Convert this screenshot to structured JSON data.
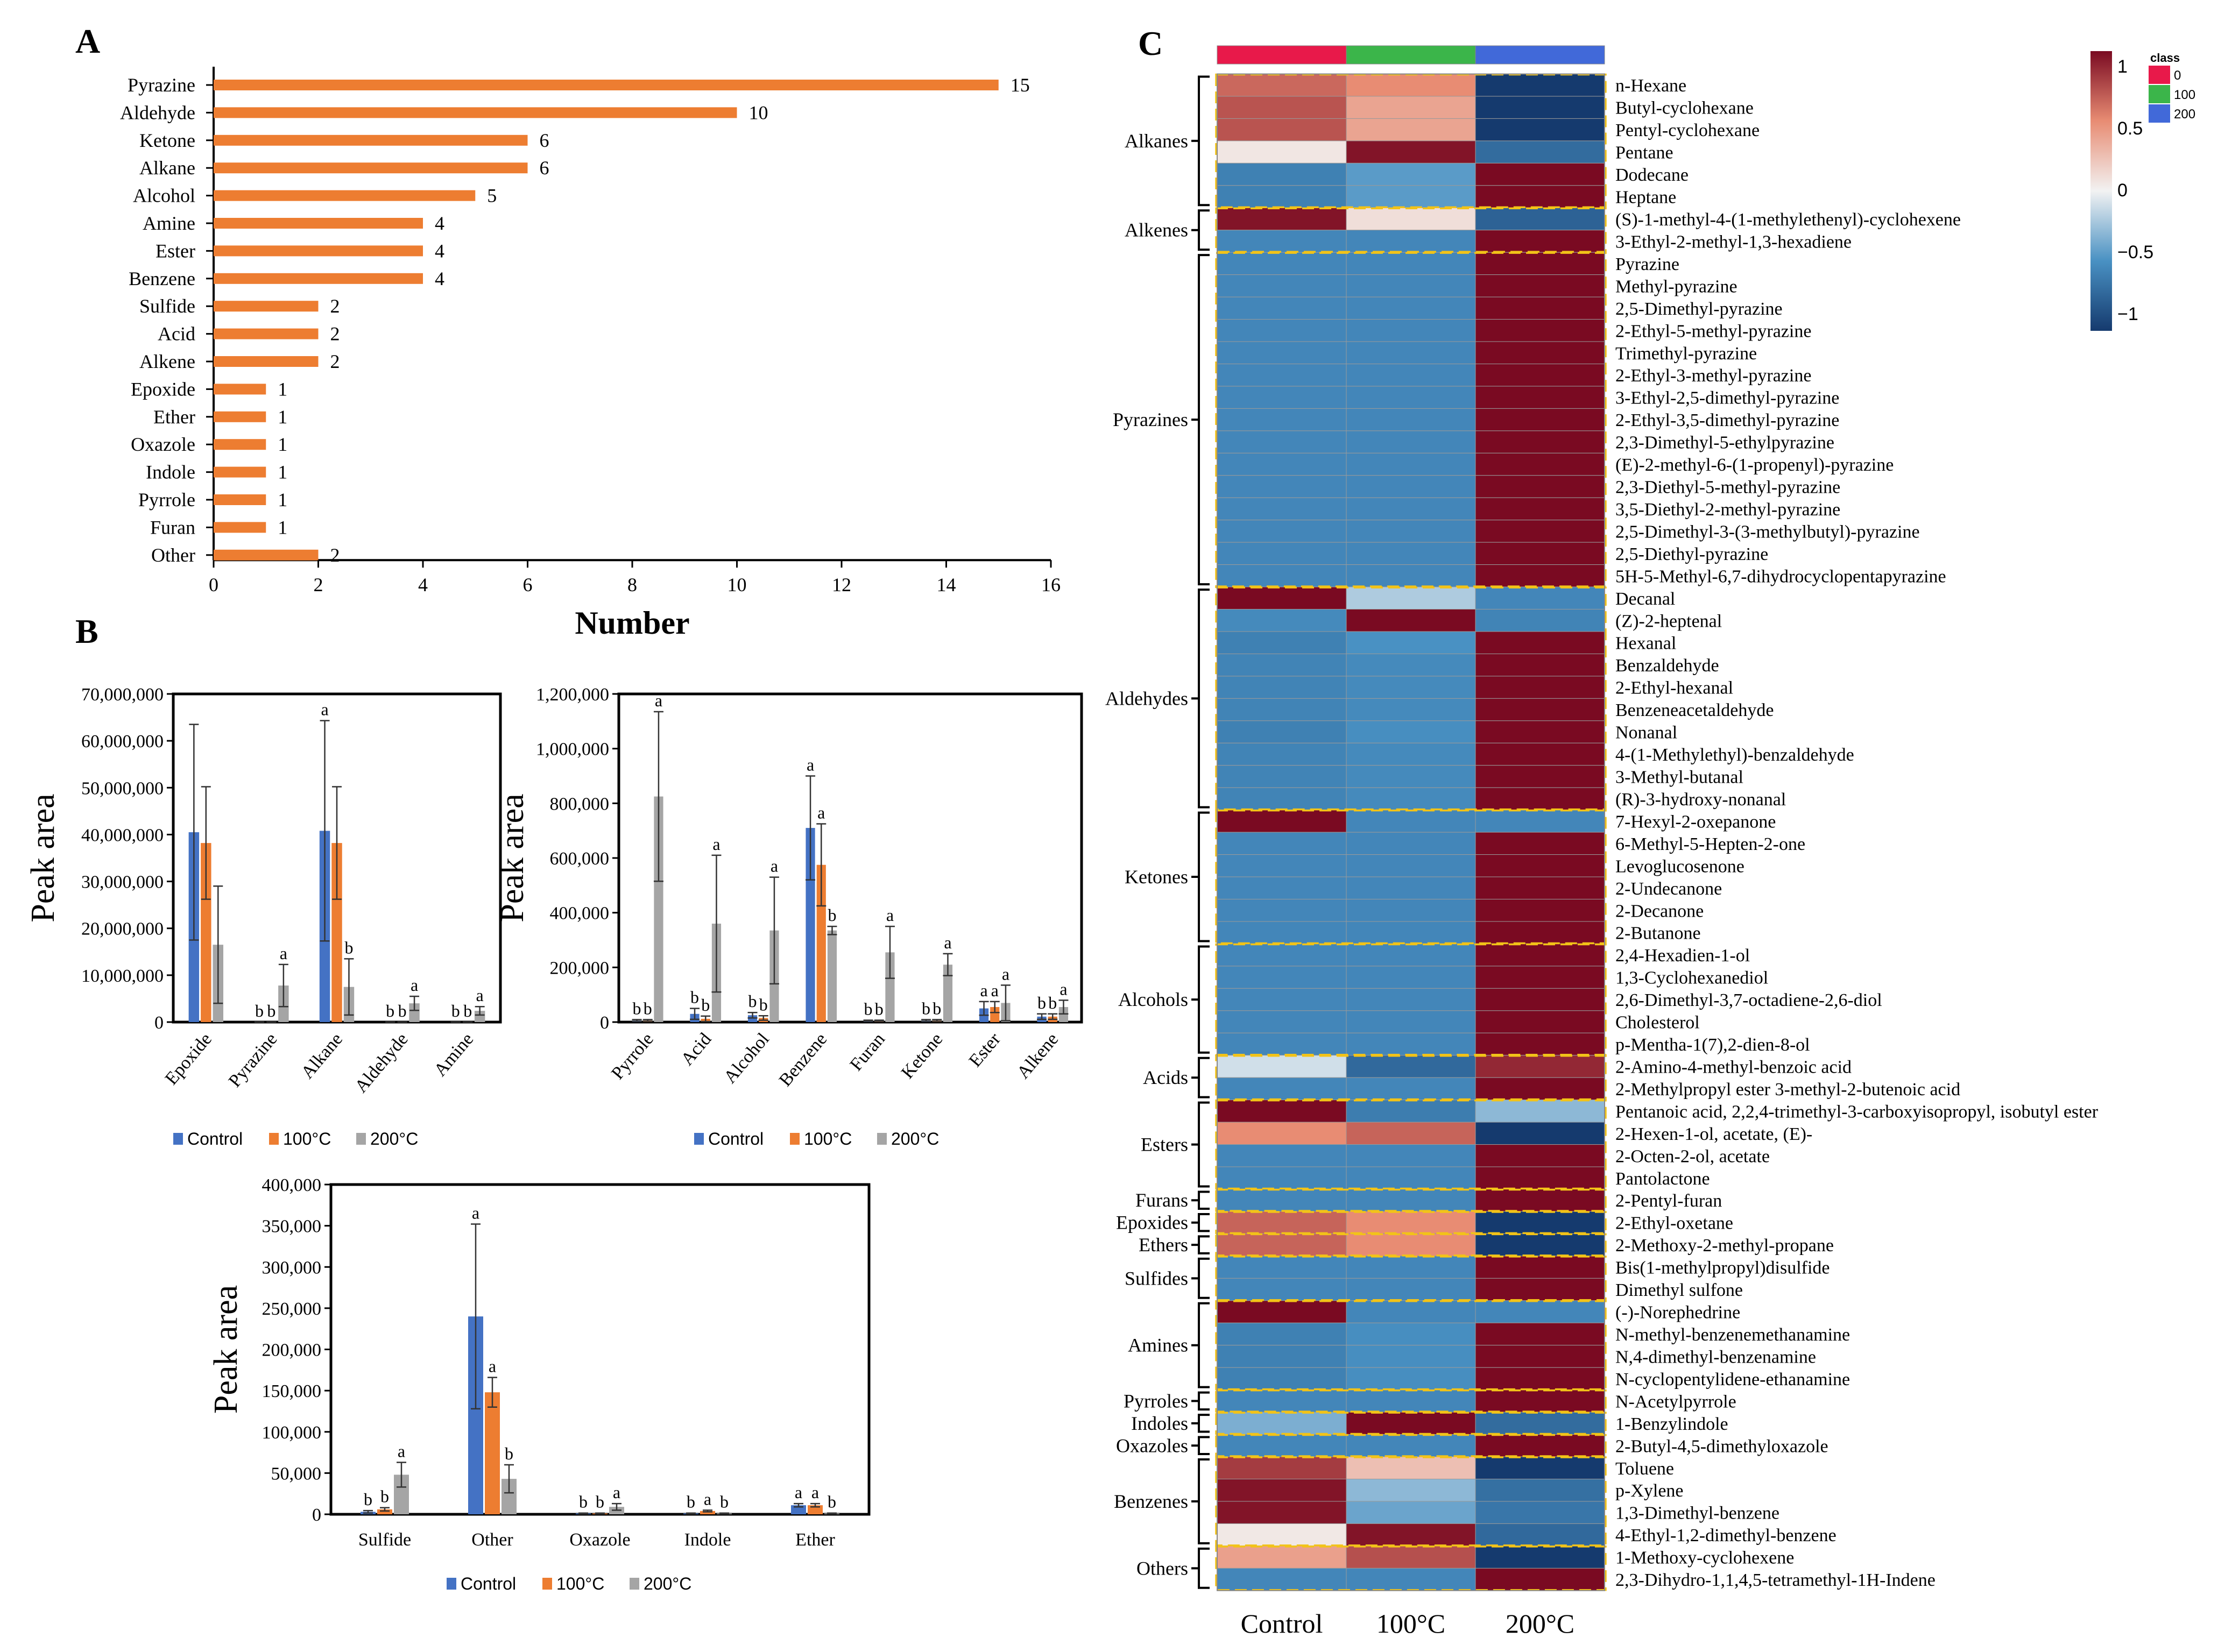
{
  "colors": {
    "orange": "#ED7D31",
    "control": "#4472C4",
    "c100": "#ED7D31",
    "c200": "#A5A5A5",
    "strip_control": "#E8194A",
    "strip_100": "#3BB54A",
    "strip_200": "#4169D9",
    "box": "#F2C318",
    "hm_high": "#7A0A22",
    "hm_mid": "#F2F2F2",
    "hm_low": "#153A6E"
  },
  "panel_labels": {
    "a": "A",
    "b": "B",
    "c": "C"
  },
  "chart_data": [
    {
      "id": "A",
      "type": "bar",
      "orientation": "horizontal",
      "categories": [
        "Pyrazine",
        "Aldehyde",
        "Ketone",
        "Alkane",
        "Alcohol",
        "Amine",
        "Ester",
        "Benzene",
        "Sulfide",
        "Acid",
        "Alkene",
        "Epoxide",
        "Ether",
        "Oxazole",
        "Indole",
        "Pyrrole",
        "Furan",
        "Other"
      ],
      "values": [
        15,
        10,
        6,
        6,
        5,
        4,
        4,
        4,
        2,
        2,
        2,
        1,
        1,
        1,
        1,
        1,
        1,
        2
      ],
      "xlabel": "Number",
      "xlim": [
        0,
        16
      ],
      "xticks": [
        0,
        2,
        4,
        6,
        8,
        10,
        12,
        14,
        16
      ]
    },
    {
      "id": "B1",
      "type": "bar",
      "ylabel": "Peak area",
      "ylim": [
        0,
        70000000
      ],
      "yticks": [
        0,
        10000000,
        20000000,
        30000000,
        40000000,
        50000000,
        60000000,
        70000000
      ],
      "ytick_labels": [
        "0",
        "10,000,000",
        "20,000,000",
        "30,000,000",
        "40,000,000",
        "50,000,000",
        "60,000,000",
        "70,000,000"
      ],
      "categories": [
        "Epoxide",
        "Pyrazine",
        "Alkane",
        "Aldehyde",
        "Amine"
      ],
      "series": [
        {
          "name": "Control",
          "values": [
            40500000,
            0,
            40800000,
            0,
            0
          ],
          "errors": [
            23000000,
            0,
            23500000,
            0,
            0
          ],
          "letters": [
            "",
            "b",
            "a",
            "b",
            "b"
          ]
        },
        {
          "name": "100°C",
          "values": [
            38200000,
            0,
            38200000,
            0,
            0
          ],
          "errors": [
            12000000,
            0,
            12000000,
            0,
            0
          ],
          "letters": [
            "",
            "b",
            "",
            "b",
            "b"
          ]
        },
        {
          "name": "200°C",
          "values": [
            16500000,
            7800000,
            7500000,
            4000000,
            2400000
          ],
          "errors": [
            12500000,
            4500000,
            6000000,
            1500000,
            900000
          ],
          "letters": [
            "",
            "a",
            "b",
            "a",
            "a"
          ]
        }
      ],
      "legend": [
        "Control",
        "100°C",
        "200°C"
      ]
    },
    {
      "id": "B2",
      "type": "bar",
      "ylabel": "Peak area",
      "ylim": [
        0,
        1200000
      ],
      "yticks": [
        0,
        200000,
        400000,
        600000,
        800000,
        1000000,
        1200000
      ],
      "ytick_labels": [
        "0",
        "200,000",
        "400,000",
        "600,000",
        "800,000",
        "1,000,000",
        "1,200,000"
      ],
      "categories": [
        "Pyrrole",
        "Acid",
        "Alcohol",
        "Benzene",
        "Furan",
        "Ketone",
        "Ester",
        "Alkene"
      ],
      "series": [
        {
          "name": "Control",
          "values": [
            6000,
            30000,
            25000,
            710000,
            5000,
            6000,
            50000,
            20000
          ],
          "errors": [
            3000,
            20000,
            10000,
            190000,
            2000,
            3000,
            25000,
            10000
          ],
          "letters": [
            "b",
            "b",
            "b",
            "a",
            "b",
            "b",
            "a",
            "b"
          ]
        },
        {
          "name": "100°C",
          "values": [
            6000,
            12000,
            15000,
            575000,
            5000,
            6000,
            55000,
            20000
          ],
          "errors": [
            3000,
            10000,
            8000,
            150000,
            2000,
            3000,
            20000,
            10000
          ],
          "letters": [
            "b",
            "b",
            "b",
            "a",
            "b",
            "b",
            "a",
            "b"
          ]
        },
        {
          "name": "200°C",
          "values": [
            825000,
            360000,
            335000,
            335000,
            255000,
            210000,
            70000,
            55000
          ],
          "errors": [
            310000,
            250000,
            195000,
            15000,
            95000,
            40000,
            65000,
            25000
          ],
          "letters": [
            "a",
            "a",
            "a",
            "b",
            "a",
            "a",
            "a",
            "a"
          ]
        }
      ],
      "legend": [
        "Control",
        "100°C",
        "200°C"
      ]
    },
    {
      "id": "B3",
      "type": "bar",
      "ylabel": "Peak area",
      "ylim": [
        0,
        400000
      ],
      "yticks": [
        0,
        50000,
        100000,
        150000,
        200000,
        250000,
        300000,
        350000,
        400000
      ],
      "ytick_labels": [
        "0",
        "50,000",
        "100,000",
        "150,000",
        "200,000",
        "250,000",
        "300,000",
        "350,000",
        "400,000"
      ],
      "categories": [
        "Sulfide",
        "Other",
        "Oxazole",
        "Indole",
        "Ether"
      ],
      "series": [
        {
          "name": "Control",
          "values": [
            3000,
            240000,
            1000,
            1000,
            11000
          ],
          "errors": [
            1500,
            112000,
            500,
            500,
            2000
          ],
          "letters": [
            "b",
            "a",
            "b",
            "b",
            "a"
          ]
        },
        {
          "name": "100°C",
          "values": [
            6000,
            148000,
            1000,
            4000,
            11000
          ],
          "errors": [
            2000,
            18000,
            500,
            1000,
            2000
          ],
          "letters": [
            "b",
            "a",
            "b",
            "a",
            "a"
          ]
        },
        {
          "name": "200°C",
          "values": [
            48000,
            43000,
            9000,
            1000,
            1000
          ],
          "errors": [
            15000,
            17000,
            4000,
            500,
            500
          ],
          "letters": [
            "a",
            "b",
            "a",
            "b",
            "b"
          ]
        }
      ],
      "legend": [
        "Control",
        "100°C",
        "200°C"
      ]
    },
    {
      "id": "C",
      "type": "heatmap",
      "columns": [
        "Control",
        "100°C",
        "200°C"
      ],
      "legend_title": "class",
      "class_legend": [
        "0",
        "100",
        "200"
      ],
      "color_scale": {
        "min": -1,
        "max": 1,
        "ticks": [
          1,
          0.5,
          0,
          -0.5,
          -1
        ],
        "tick_labels": [
          "1",
          "0.5",
          "0",
          "−0.5",
          "−1"
        ]
      },
      "groups": [
        {
          "name": "Alkanes",
          "count": 6
        },
        {
          "name": "Alkenes",
          "count": 2
        },
        {
          "name": "Pyrazines",
          "count": 15
        },
        {
          "name": "Aldehydes",
          "count": 10
        },
        {
          "name": "Ketones",
          "count": 6
        },
        {
          "name": "Alcohols",
          "count": 5
        },
        {
          "name": "Acids",
          "count": 2
        },
        {
          "name": "Esters",
          "count": 4
        },
        {
          "name": "Furans",
          "count": 1
        },
        {
          "name": "Epoxides",
          "count": 1
        },
        {
          "name": "Ethers",
          "count": 1
        },
        {
          "name": "Sulfides",
          "count": 2
        },
        {
          "name": "Amines",
          "count": 4
        },
        {
          "name": "Pyrroles",
          "count": 1
        },
        {
          "name": "Indoles",
          "count": 1
        },
        {
          "name": "Oxazoles",
          "count": 1
        },
        {
          "name": "Benzenes",
          "count": 4
        },
        {
          "name": "Others",
          "count": 2
        }
      ],
      "rows": [
        {
          "name": "n-Hexane",
          "values": [
            0.68,
            0.5,
            -1.15
          ]
        },
        {
          "name": "Butyl-cyclohexane",
          "values": [
            0.78,
            0.38,
            -1.15
          ]
        },
        {
          "name": "Pentyl-cyclohexane",
          "values": [
            0.78,
            0.38,
            -1.15
          ]
        },
        {
          "name": "Pentane",
          "values": [
            0.06,
            1.1,
            -0.78
          ]
        },
        {
          "name": "Dodecane",
          "values": [
            -0.62,
            -0.45,
            1.15
          ]
        },
        {
          "name": "Heptane",
          "values": [
            -0.62,
            -0.45,
            1.15
          ]
        },
        {
          "name": "(S)-1-methyl-4-(1-methylethenyl)-cyclohexene",
          "values": [
            1.1,
            0.1,
            -0.85
          ]
        },
        {
          "name": "3-Ethyl-2-methyl-1,3-hexadiene",
          "values": [
            -0.58,
            -0.58,
            1.15
          ]
        },
        {
          "name": "Pyrazine",
          "values": [
            -0.58,
            -0.58,
            1.15
          ]
        },
        {
          "name": "Methyl-pyrazine",
          "values": [
            -0.58,
            -0.58,
            1.15
          ]
        },
        {
          "name": "2,5-Dimethyl-pyrazine",
          "values": [
            -0.58,
            -0.58,
            1.15
          ]
        },
        {
          "name": "2-Ethyl-5-methyl-pyrazine",
          "values": [
            -0.58,
            -0.58,
            1.15
          ]
        },
        {
          "name": "Trimethyl-pyrazine",
          "values": [
            -0.58,
            -0.58,
            1.15
          ]
        },
        {
          "name": "2-Ethyl-3-methyl-pyrazine",
          "values": [
            -0.58,
            -0.58,
            1.15
          ]
        },
        {
          "name": "3-Ethyl-2,5-dimethyl-pyrazine",
          "values": [
            -0.58,
            -0.58,
            1.15
          ]
        },
        {
          "name": "2-Ethyl-3,5-dimethyl-pyrazine",
          "values": [
            -0.58,
            -0.58,
            1.15
          ]
        },
        {
          "name": "2,3-Dimethyl-5-ethylpyrazine",
          "values": [
            -0.58,
            -0.58,
            1.15
          ]
        },
        {
          "name": "(E)-2-methyl-6-(1-propenyl)-pyrazine",
          "values": [
            -0.58,
            -0.58,
            1.15
          ]
        },
        {
          "name": "2,3-Diethyl-5-methyl-pyrazine",
          "values": [
            -0.58,
            -0.58,
            1.15
          ]
        },
        {
          "name": "3,5-Diethyl-2-methyl-pyrazine",
          "values": [
            -0.58,
            -0.58,
            1.15
          ]
        },
        {
          "name": "2,5-Dimethyl-3-(3-methylbutyl)-pyrazine",
          "values": [
            -0.58,
            -0.58,
            1.15
          ]
        },
        {
          "name": "2,5-Diethyl-pyrazine",
          "values": [
            -0.58,
            -0.58,
            1.15
          ]
        },
        {
          "name": "5H-5-Methyl-6,7-dihydrocyclopentapyrazine",
          "values": [
            -0.58,
            -0.58,
            1.15
          ]
        },
        {
          "name": "Decanal",
          "values": [
            1.15,
            -0.2,
            -0.58
          ]
        },
        {
          "name": "(Z)-2-heptenal",
          "values": [
            -0.55,
            1.15,
            -0.6
          ]
        },
        {
          "name": "Hexanal",
          "values": [
            -0.62,
            -0.5,
            1.15
          ]
        },
        {
          "name": "Benzaldehyde",
          "values": [
            -0.6,
            -0.55,
            1.15
          ]
        },
        {
          "name": "2-Ethyl-hexanal",
          "values": [
            -0.6,
            -0.55,
            1.15
          ]
        },
        {
          "name": "Benzeneacetaldehyde",
          "values": [
            -0.6,
            -0.55,
            1.15
          ]
        },
        {
          "name": "Nonanal",
          "values": [
            -0.62,
            -0.52,
            1.15
          ]
        },
        {
          "name": "4-(1-Methylethyl)-benzaldehyde",
          "values": [
            -0.6,
            -0.55,
            1.15
          ]
        },
        {
          "name": "3-Methyl-butanal",
          "values": [
            -0.6,
            -0.55,
            1.15
          ]
        },
        {
          "name": "(R)-3-hydroxy-nonanal",
          "values": [
            -0.6,
            -0.55,
            1.15
          ]
        },
        {
          "name": "7-Hexyl-2-oxepanone",
          "values": [
            1.15,
            -0.58,
            -0.58
          ]
        },
        {
          "name": "6-Methyl-5-Hepten-2-one",
          "values": [
            -0.58,
            -0.58,
            1.15
          ]
        },
        {
          "name": "Levoglucosenone",
          "values": [
            -0.58,
            -0.58,
            1.15
          ]
        },
        {
          "name": "2-Undecanone",
          "values": [
            -0.58,
            -0.58,
            1.15
          ]
        },
        {
          "name": "2-Decanone",
          "values": [
            -0.58,
            -0.58,
            1.15
          ]
        },
        {
          "name": "2-Butanone",
          "values": [
            -0.58,
            -0.58,
            1.15
          ]
        },
        {
          "name": "2,4-Hexadien-1-ol",
          "values": [
            -0.58,
            -0.58,
            1.15
          ]
        },
        {
          "name": "1,3-Cyclohexanediol",
          "values": [
            -0.58,
            -0.58,
            1.15
          ]
        },
        {
          "name": "2,6-Dimethyl-3,7-octadiene-2,6-diol",
          "values": [
            -0.58,
            -0.58,
            1.15
          ]
        },
        {
          "name": "Cholesterol",
          "values": [
            -0.58,
            -0.58,
            1.15
          ]
        },
        {
          "name": "p-Mentha-1(7),2-dien-8-ol",
          "values": [
            -0.58,
            -0.58,
            1.15
          ]
        },
        {
          "name": "2-Amino-4-methyl-benzoic acid",
          "values": [
            -0.1,
            -0.8,
            1.0
          ]
        },
        {
          "name": "2-Methylpropyl ester 3-methyl-2-butenoic acid",
          "values": [
            -0.58,
            -0.58,
            1.15
          ]
        },
        {
          "name": "Pentanoic acid, 2,2,4-trimethyl-3-carboxyisopropyl, isobutyl ester",
          "values": [
            1.15,
            -0.65,
            -0.3
          ]
        },
        {
          "name": "2-Hexen-1-ol, acetate, (E)-",
          "values": [
            0.5,
            0.7,
            -1.15
          ]
        },
        {
          "name": "2-Octen-2-ol, acetate",
          "values": [
            -0.58,
            -0.58,
            1.15
          ]
        },
        {
          "name": "Pantolactone",
          "values": [
            -0.58,
            -0.58,
            1.15
          ]
        },
        {
          "name": "2-Pentyl-furan",
          "values": [
            -0.58,
            -0.58,
            1.15
          ]
        },
        {
          "name": "2-Ethyl-oxetane",
          "values": [
            0.7,
            0.5,
            -1.15
          ]
        },
        {
          "name": "2-Methoxy-2-methyl-propane",
          "values": [
            0.7,
            0.5,
            -1.15
          ]
        },
        {
          "name": "Bis(1-methylpropyl)disulfide",
          "values": [
            -0.58,
            -0.58,
            1.15
          ]
        },
        {
          "name": "Dimethyl sulfone",
          "values": [
            -0.58,
            -0.58,
            1.15
          ]
        },
        {
          "name": "(-)-Norephedrine",
          "values": [
            1.15,
            -0.58,
            -0.58
          ]
        },
        {
          "name": "N-methyl-benzenemethanamine",
          "values": [
            -0.62,
            -0.52,
            1.15
          ]
        },
        {
          "name": "N,4-dimethyl-benzenamine",
          "values": [
            -0.62,
            -0.52,
            1.15
          ]
        },
        {
          "name": "N-cyclopentylidene-ethanamine",
          "values": [
            -0.62,
            -0.52,
            1.15
          ]
        },
        {
          "name": "N-Acetylpyrrole",
          "values": [
            -0.58,
            -0.58,
            1.15
          ]
        },
        {
          "name": "1-Benzylindole",
          "values": [
            -0.35,
            1.15,
            -0.78
          ]
        },
        {
          "name": "2-Butyl-4,5-dimethyloxazole",
          "values": [
            -0.58,
            -0.58,
            1.15
          ]
        },
        {
          "name": "Toluene",
          "values": [
            0.9,
            0.25,
            -1.15
          ]
        },
        {
          "name": "p-Xylene",
          "values": [
            1.1,
            -0.3,
            -0.75
          ]
        },
        {
          "name": "1,3-Dimethyl-benzene",
          "values": [
            1.1,
            -0.4,
            -0.7
          ]
        },
        {
          "name": "4-Ethyl-1,2-dimethyl-benzene",
          "values": [
            0.05,
            1.1,
            -0.8
          ]
        },
        {
          "name": "1-Methoxy-cyclohexene",
          "values": [
            0.4,
            0.8,
            -1.15
          ]
        },
        {
          "name": "2,3-Dihydro-1,1,4,5-tetramethyl-1H-Indene",
          "values": [
            -0.58,
            -0.58,
            1.15
          ]
        }
      ]
    }
  ]
}
